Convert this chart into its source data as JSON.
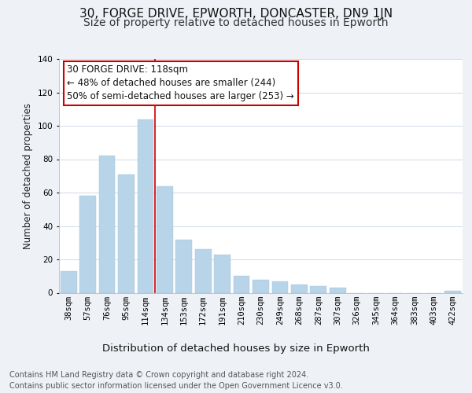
{
  "title": "30, FORGE DRIVE, EPWORTH, DONCASTER, DN9 1JN",
  "subtitle": "Size of property relative to detached houses in Epworth",
  "xlabel": "Distribution of detached houses by size in Epworth",
  "ylabel": "Number of detached properties",
  "categories": [
    "38sqm",
    "57sqm",
    "76sqm",
    "95sqm",
    "114sqm",
    "134sqm",
    "153sqm",
    "172sqm",
    "191sqm",
    "210sqm",
    "230sqm",
    "249sqm",
    "268sqm",
    "287sqm",
    "307sqm",
    "326sqm",
    "345sqm",
    "364sqm",
    "383sqm",
    "403sqm",
    "422sqm"
  ],
  "values": [
    13,
    58,
    82,
    71,
    104,
    64,
    32,
    26,
    23,
    10,
    8,
    7,
    5,
    4,
    3,
    0,
    0,
    0,
    0,
    0,
    1
  ],
  "bar_color": "#b8d4e8",
  "vline_color": "#cc0000",
  "vline_x": 4.5,
  "annotation_text": "30 FORGE DRIVE: 118sqm\n← 48% of detached houses are smaller (244)\n50% of semi-detached houses are larger (253) →",
  "annotation_box_facecolor": "#ffffff",
  "annotation_box_edgecolor": "#cc0000",
  "ylim": [
    0,
    140
  ],
  "yticks": [
    0,
    20,
    40,
    60,
    80,
    100,
    120,
    140
  ],
  "footer_line1": "Contains HM Land Registry data © Crown copyright and database right 2024.",
  "footer_line2": "Contains public sector information licensed under the Open Government Licence v3.0.",
  "bg_color": "#eef2f7",
  "plot_bg_color": "#ffffff",
  "grid_color": "#c8d4e0",
  "title_fontsize": 11,
  "subtitle_fontsize": 10,
  "xlabel_fontsize": 9.5,
  "ylabel_fontsize": 8.5,
  "tick_fontsize": 7.5,
  "annotation_fontsize": 8.5,
  "footer_fontsize": 7
}
